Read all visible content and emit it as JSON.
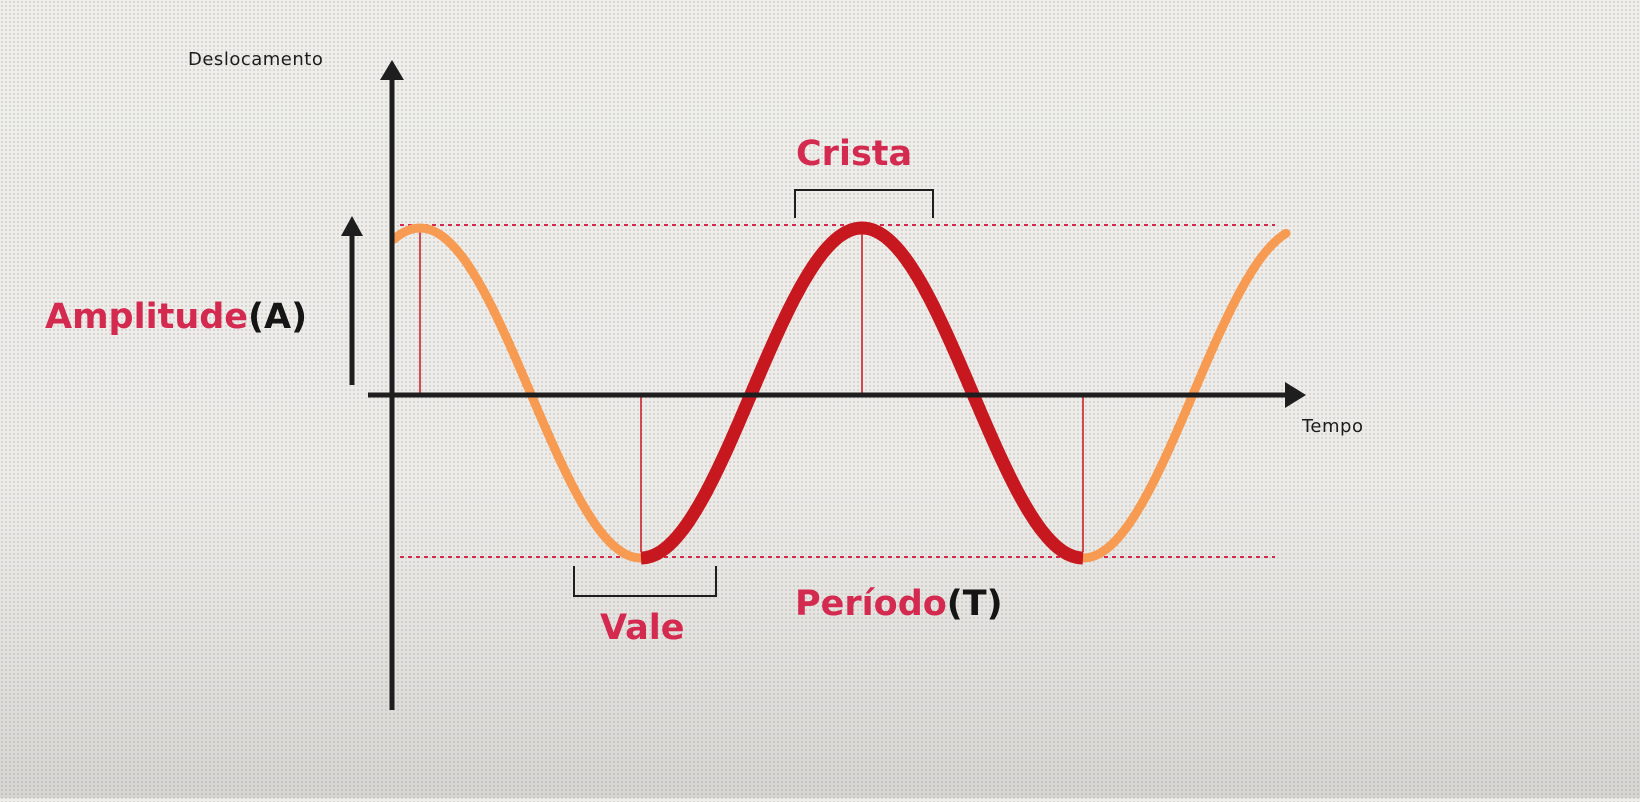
{
  "axes": {
    "y_label": "Deslocamento",
    "x_label": "Tempo"
  },
  "labels": {
    "amplitude": "Amplitude",
    "amplitude_symbol": "(A)",
    "crest": "Crista",
    "trough": "Vale",
    "period": "Período",
    "period_symbol": "(T)"
  },
  "colors": {
    "wave_light": "#f79b52",
    "wave_dark": "#c8181f",
    "reference_lines": "#d42a4f",
    "accent_text": "#d42a4f",
    "axis": "#1e1e1e"
  }
}
